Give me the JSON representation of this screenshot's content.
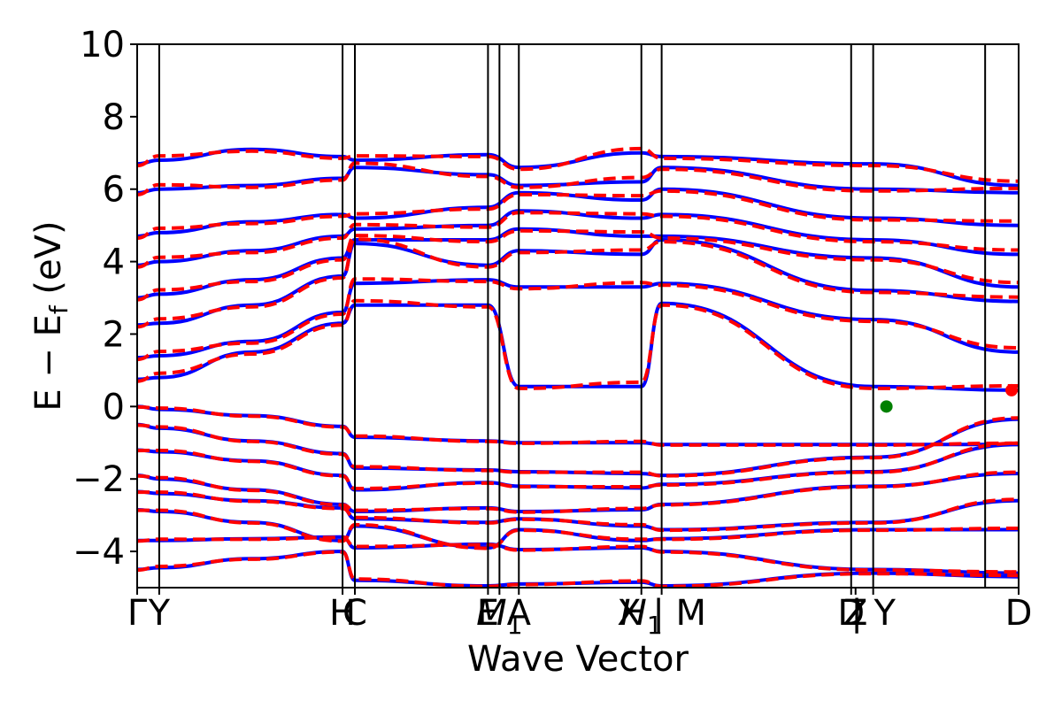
{
  "chart_data": {
    "type": "line",
    "title": "",
    "xlabel": "Wave Vector",
    "ylabel": "E − E",
    "ylabel_sub": "f",
    "ylabel_unit": " (eV)",
    "ylim": [
      -5,
      10
    ],
    "yticks": [
      10,
      8,
      6,
      4,
      2,
      0,
      -2,
      -4
    ],
    "ytick_labels": [
      "10",
      "8",
      "6",
      "4",
      "2",
      "0",
      "−2",
      "−4"
    ],
    "xlim": [
      0,
      1
    ],
    "kpoint_positions": [
      0.0,
      0.025,
      0.233,
      0.247,
      0.398,
      0.411,
      0.433,
      0.572,
      0.595,
      0.81,
      0.835,
      0.962,
      1.0
    ],
    "kpoint_labels": [
      {
        "x": 0.0,
        "text": "Γ"
      },
      {
        "x": 0.025,
        "text": "Y"
      },
      {
        "x": 0.233,
        "text": "H"
      },
      {
        "x": 0.247,
        "text": "C"
      },
      {
        "x": 0.398,
        "text": "E"
      },
      {
        "x": 0.411,
        "text": "M",
        "sub": "1"
      },
      {
        "x": 0.433,
        "text": "A"
      },
      {
        "x": 0.572,
        "text": "H",
        "sub": "1"
      },
      {
        "x": 0.595,
        "text": "X | M"
      },
      {
        "x": 0.81,
        "text": "D"
      },
      {
        "x": 0.815,
        "text": "Z"
      },
      {
        "x": 0.835,
        "text": "| Y"
      },
      {
        "x": 1.0,
        "text": "D"
      }
    ],
    "vbm": {
      "x": 0.85,
      "y": 0.0,
      "color": "#008000"
    },
    "cbm": {
      "x": 0.992,
      "y": 0.45,
      "color": "#ff0000"
    },
    "series_styles": [
      {
        "color": "#0000ff",
        "dash": "solid"
      },
      {
        "color": "#ff0000",
        "dash": "dashed"
      }
    ],
    "bands_valence": [
      [
        0.0,
        -0.08,
        -0.25,
        -0.55,
        -0.85,
        -0.95,
        -1.0,
        -1.0,
        -1.05,
        -1.05,
        -1.05
      ],
      [
        -0.5,
        -0.6,
        -0.95,
        -1.3,
        -1.7,
        -1.75,
        -1.8,
        -1.85,
        -1.9,
        -1.4,
        -0.35
      ],
      [
        -1.2,
        -1.25,
        -1.5,
        -1.9,
        -2.3,
        -2.1,
        -2.2,
        -2.25,
        -2.15,
        -1.8,
        -1.05
      ],
      [
        -1.9,
        -2.0,
        -2.3,
        -2.7,
        -2.9,
        -2.8,
        -2.9,
        -2.85,
        -2.7,
        -2.2,
        -1.85
      ],
      [
        -2.35,
        -2.4,
        -2.6,
        -2.8,
        -3.1,
        -3.2,
        -3.1,
        -3.3,
        -3.4,
        -3.2,
        -2.6
      ],
      [
        -2.85,
        -2.9,
        -3.2,
        -3.7,
        -3.3,
        -3.9,
        -3.4,
        -3.7,
        -3.65,
        -3.4,
        -3.4
      ],
      [
        -3.7,
        -3.7,
        -3.65,
        -3.6,
        -3.9,
        -3.8,
        -3.95,
        -3.9,
        -4.0,
        -4.5,
        -4.6
      ],
      [
        -4.5,
        -4.45,
        -4.2,
        -4.0,
        -4.8,
        -4.95,
        -4.9,
        -4.85,
        -4.95,
        -4.6,
        -4.7
      ]
    ],
    "bands_conduction": [
      [
        0.75,
        0.8,
        1.5,
        2.3,
        2.8,
        2.8,
        0.55,
        0.55,
        2.85,
        0.55,
        0.45
      ],
      [
        1.35,
        1.4,
        1.8,
        2.6,
        3.4,
        3.5,
        3.3,
        3.3,
        3.4,
        2.4,
        1.5
      ],
      [
        2.25,
        2.3,
        2.8,
        3.6,
        4.5,
        3.9,
        4.3,
        4.2,
        4.6,
        3.2,
        2.9
      ],
      [
        3.0,
        3.1,
        3.5,
        4.1,
        4.6,
        4.6,
        4.9,
        4.7,
        4.7,
        4.1,
        3.3
      ],
      [
        3.9,
        4.0,
        4.3,
        4.7,
        4.9,
        5.0,
        5.4,
        5.2,
        5.3,
        4.6,
        4.2
      ],
      [
        4.7,
        4.8,
        5.1,
        5.3,
        5.2,
        5.5,
        5.9,
        5.7,
        6.0,
        5.2,
        5.0
      ],
      [
        5.9,
        6.0,
        6.1,
        6.3,
        6.6,
        6.4,
        6.1,
        6.2,
        6.6,
        6.0,
        5.9
      ],
      [
        6.7,
        6.8,
        7.1,
        6.9,
        6.8,
        6.95,
        6.6,
        7.0,
        6.9,
        6.7,
        6.1
      ]
    ]
  }
}
